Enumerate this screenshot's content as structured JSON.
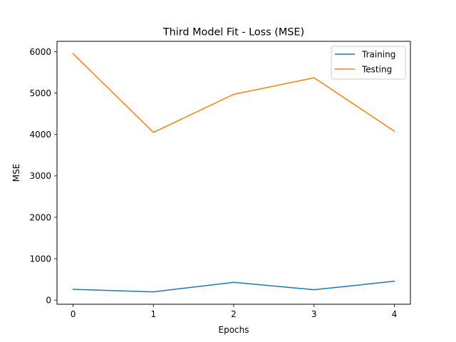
{
  "chart_data": {
    "type": "line",
    "title": "Third Model Fit - Loss (MSE)",
    "xlabel": "Epochs",
    "ylabel": "MSE",
    "x": [
      0,
      1,
      2,
      3,
      4
    ],
    "xticks": [
      "0",
      "1",
      "2",
      "3",
      "4"
    ],
    "yticks": [
      "0",
      "1000",
      "2000",
      "3000",
      "4000",
      "5000",
      "6000"
    ],
    "xlim": [
      -0.2,
      4.2
    ],
    "ylim": [
      -100,
      6250
    ],
    "grid": false,
    "legend_position": "top-right",
    "series": [
      {
        "name": "Training",
        "color": "#1f77b4",
        "values": [
          260,
          200,
          430,
          250,
          455
        ]
      },
      {
        "name": "Testing",
        "color": "#ff7f0e",
        "values": [
          5950,
          4050,
          4970,
          5370,
          4080
        ]
      }
    ]
  }
}
